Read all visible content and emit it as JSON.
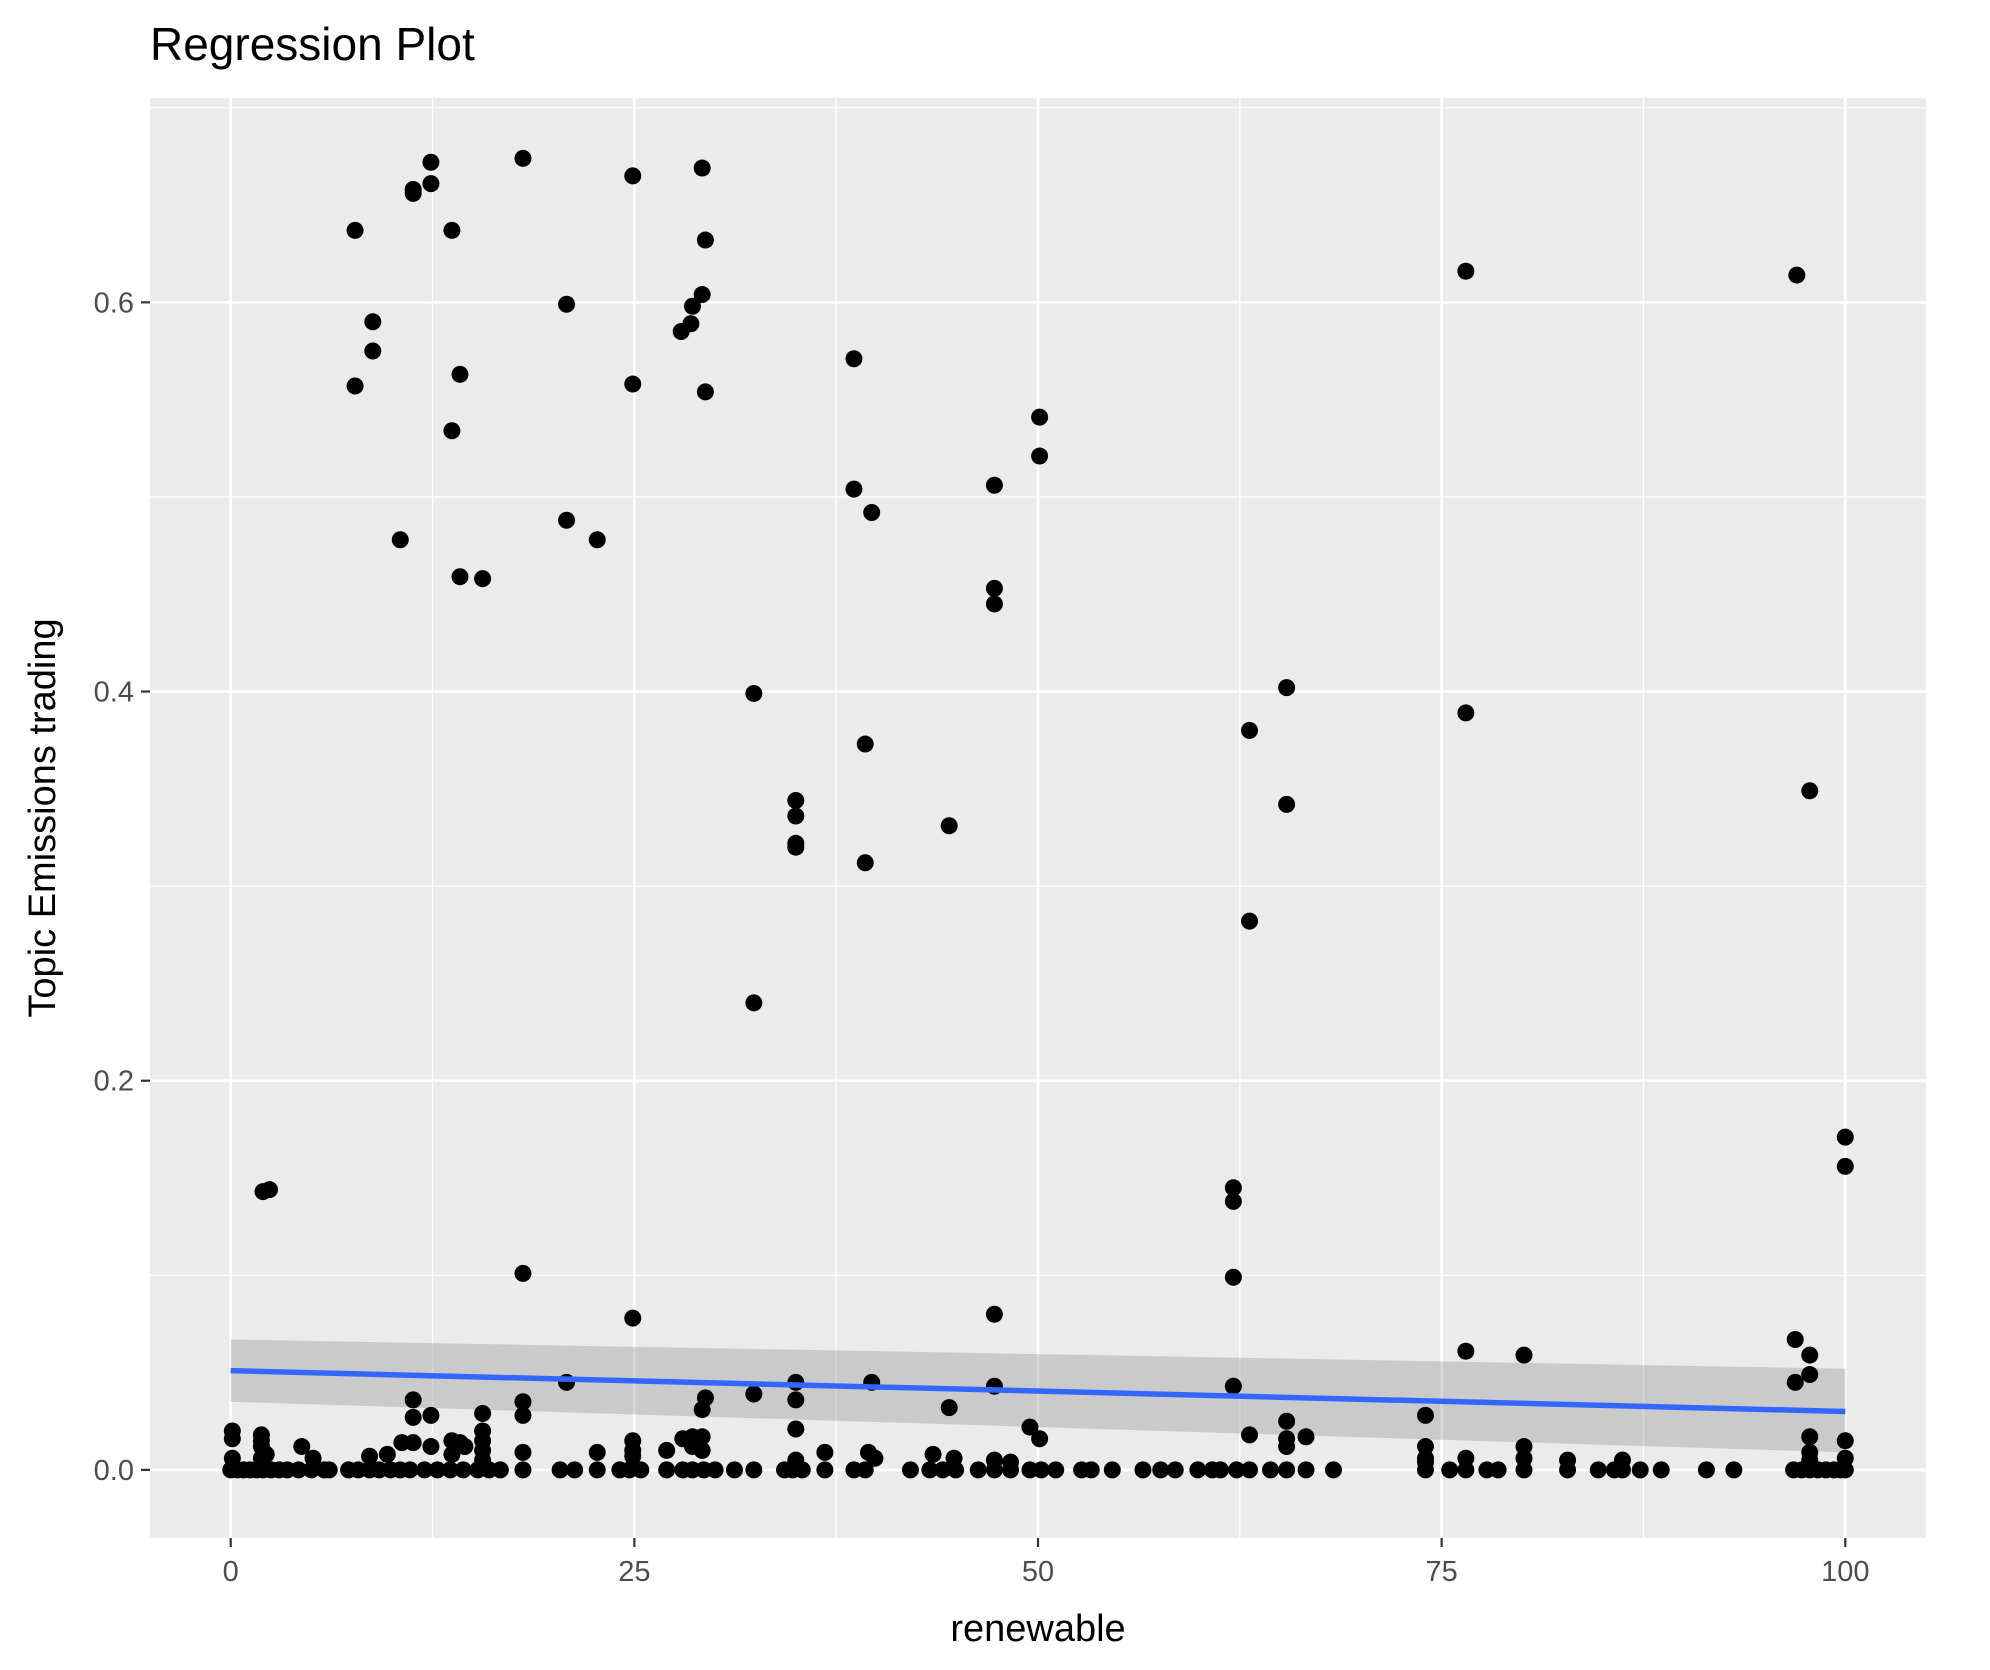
{
  "chart_data": {
    "type": "scatter",
    "title": "Regression Plot",
    "xlabel": "renewable",
    "ylabel": "Topic Emissions trading",
    "xlim": [
      -5,
      105
    ],
    "ylim": [
      -0.035,
      0.705
    ],
    "x_ticks": [
      0,
      25,
      50,
      75,
      100
    ],
    "x_tick_labels": [
      "0",
      "25",
      "50",
      "75",
      "100"
    ],
    "y_ticks": [
      0.0,
      0.2,
      0.4,
      0.6
    ],
    "y_tick_labels": [
      "0.0",
      "0.2",
      "0.4",
      "0.6"
    ],
    "grid": true,
    "legend": "none",
    "colors": {
      "panel": "#EBEBEB",
      "grid": "#FFFFFF",
      "point": "#000000",
      "fit_line": "#3366FF",
      "ribbon": "#999999",
      "tick_text": "#4D4D4D",
      "text": "#000000"
    },
    "fit": {
      "x": [
        0,
        100
      ],
      "y": [
        0.051,
        0.03
      ],
      "band_lower": [
        0.035,
        0.009
      ],
      "band_upper": [
        0.067,
        0.052
      ]
    },
    "points": [
      [
        7.7,
        0.637
      ],
      [
        8.8,
        0.59
      ],
      [
        8.8,
        0.575
      ],
      [
        7.7,
        0.557
      ],
      [
        11.3,
        0.656
      ],
      [
        11.3,
        0.658
      ],
      [
        12.4,
        0.672
      ],
      [
        12.4,
        0.661
      ],
      [
        13.7,
        0.637
      ],
      [
        14.2,
        0.563
      ],
      [
        13.7,
        0.534
      ],
      [
        10.5,
        0.478
      ],
      [
        14.2,
        0.459
      ],
      [
        15.6,
        0.458
      ],
      [
        18.1,
        0.674
      ],
      [
        20.8,
        0.599
      ],
      [
        20.8,
        0.488
      ],
      [
        22.7,
        0.478
      ],
      [
        24.9,
        0.665
      ],
      [
        24.9,
        0.558
      ],
      [
        29.2,
        0.669
      ],
      [
        29.4,
        0.632
      ],
      [
        29.2,
        0.604
      ],
      [
        28.6,
        0.598
      ],
      [
        28.5,
        0.589
      ],
      [
        27.9,
        0.585
      ],
      [
        29.4,
        0.554
      ],
      [
        38.6,
        0.571
      ],
      [
        38.6,
        0.504
      ],
      [
        39.7,
        0.492
      ],
      [
        32.4,
        0.399
      ],
      [
        35.0,
        0.344
      ],
      [
        35.0,
        0.336
      ],
      [
        35.0,
        0.322
      ],
      [
        35.0,
        0.32
      ],
      [
        39.3,
        0.373
      ],
      [
        39.3,
        0.312
      ],
      [
        32.4,
        0.24
      ],
      [
        44.5,
        0.331
      ],
      [
        47.3,
        0.506
      ],
      [
        47.3,
        0.453
      ],
      [
        47.3,
        0.445
      ],
      [
        50.1,
        0.541
      ],
      [
        50.1,
        0.521
      ],
      [
        65.4,
        0.402
      ],
      [
        63.1,
        0.38
      ],
      [
        65.4,
        0.342
      ],
      [
        63.1,
        0.282
      ],
      [
        76.5,
        0.616
      ],
      [
        76.5,
        0.389
      ],
      [
        97.0,
        0.614
      ],
      [
        97.8,
        0.349
      ],
      [
        2.0,
        0.143
      ],
      [
        2.4,
        0.144
      ],
      [
        18.1,
        0.101
      ],
      [
        24.9,
        0.078
      ],
      [
        62.1,
        0.145
      ],
      [
        62.1,
        0.138
      ],
      [
        62.1,
        0.099
      ],
      [
        47.3,
        0.08
      ],
      [
        100,
        0.171
      ],
      [
        100,
        0.156
      ],
      [
        76.5,
        0.061
      ],
      [
        80.1,
        0.059
      ],
      [
        96.9,
        0.067
      ],
      [
        97.8,
        0.059
      ],
      [
        97.8,
        0.049
      ],
      [
        96.9,
        0.045
      ],
      [
        20.8,
        0.045
      ],
      [
        35.0,
        0.045
      ],
      [
        39.7,
        0.045
      ],
      [
        47.3,
        0.043
      ],
      [
        62.1,
        0.043
      ],
      [
        11.3,
        0.036
      ],
      [
        18.1,
        0.035
      ],
      [
        29.4,
        0.037
      ],
      [
        32.4,
        0.039
      ],
      [
        35.0,
        0.036
      ],
      [
        44.5,
        0.032
      ],
      [
        29.2,
        0.031
      ],
      [
        12.4,
        0.028
      ],
      [
        15.6,
        0.029
      ],
      [
        18.1,
        0.028
      ],
      [
        11.3,
        0.027
      ],
      [
        74.0,
        0.028
      ],
      [
        65.4,
        0.025
      ],
      [
        49.5,
        0.022
      ],
      [
        35.0,
        0.021
      ],
      [
        15.6,
        0.02
      ],
      [
        97.8,
        0.017
      ],
      [
        100,
        0.015
      ],
      [
        50.1,
        0.016
      ],
      [
        63.1,
        0.018
      ],
      [
        65.4,
        0.016
      ],
      [
        66.6,
        0.017
      ],
      [
        65.4,
        0.012
      ],
      [
        0.1,
        0.02
      ],
      [
        0.1,
        0.016
      ],
      [
        1.9,
        0.018
      ],
      [
        1.9,
        0.015
      ],
      [
        1.9,
        0.012
      ],
      [
        2.2,
        0.008
      ],
      [
        4.4,
        0.012
      ],
      [
        10.6,
        0.014
      ],
      [
        11.3,
        0.014
      ],
      [
        12.4,
        0.012
      ],
      [
        13.7,
        0.015
      ],
      [
        14.2,
        0.014
      ],
      [
        14.5,
        0.012
      ],
      [
        15.6,
        0.015
      ],
      [
        15.6,
        0.01
      ],
      [
        15.6,
        0.005
      ],
      [
        24.9,
        0.015
      ],
      [
        24.9,
        0.01
      ],
      [
        28.6,
        0.017
      ],
      [
        28.0,
        0.016
      ],
      [
        29.2,
        0.017
      ],
      [
        28.6,
        0.012
      ],
      [
        29.2,
        0.01
      ],
      [
        27.0,
        0.01
      ],
      [
        74.0,
        0.012
      ],
      [
        74.0,
        0.006
      ],
      [
        80.1,
        0.012
      ],
      [
        80.1,
        0.006
      ],
      [
        0.1,
        0.006
      ],
      [
        1.9,
        0.006
      ],
      [
        5.1,
        0.006
      ],
      [
        8.6,
        0.007
      ],
      [
        9.7,
        0.008
      ],
      [
        13.7,
        0.008
      ],
      [
        18.1,
        0.009
      ],
      [
        22.7,
        0.009
      ],
      [
        24.9,
        0.007
      ],
      [
        36.8,
        0.009
      ],
      [
        39.5,
        0.009
      ],
      [
        39.9,
        0.006
      ],
      [
        43.5,
        0.008
      ],
      [
        44.8,
        0.006
      ],
      [
        47.3,
        0.005
      ],
      [
        48.3,
        0.004
      ],
      [
        35.0,
        0.005
      ],
      [
        74.0,
        0.004
      ],
      [
        76.5,
        0.006
      ],
      [
        82.8,
        0.005
      ],
      [
        86.2,
        0.005
      ],
      [
        97.8,
        0.009
      ],
      [
        97.8,
        0.005
      ],
      [
        100,
        0.006
      ],
      [
        0,
        0
      ],
      [
        0.4,
        0
      ],
      [
        0.8,
        0
      ],
      [
        1.2,
        0
      ],
      [
        1.6,
        0
      ],
      [
        2.0,
        0
      ],
      [
        2.5,
        0
      ],
      [
        3.0,
        0
      ],
      [
        3.5,
        0
      ],
      [
        4.2,
        0
      ],
      [
        5.0,
        0
      ],
      [
        5.8,
        0
      ],
      [
        6.1,
        0
      ],
      [
        7.3,
        0
      ],
      [
        7.9,
        0
      ],
      [
        8.6,
        0
      ],
      [
        9.2,
        0
      ],
      [
        9.9,
        0
      ],
      [
        10.5,
        0
      ],
      [
        11.1,
        0
      ],
      [
        12.0,
        0
      ],
      [
        12.8,
        0
      ],
      [
        13.6,
        0
      ],
      [
        14.4,
        0
      ],
      [
        15.3,
        0
      ],
      [
        16.0,
        0
      ],
      [
        16.7,
        0
      ],
      [
        18.1,
        0
      ],
      [
        20.4,
        0
      ],
      [
        21.3,
        0
      ],
      [
        22.7,
        0
      ],
      [
        24.1,
        0
      ],
      [
        24.7,
        0
      ],
      [
        25.4,
        0
      ],
      [
        27.0,
        0
      ],
      [
        28.0,
        0
      ],
      [
        28.6,
        0
      ],
      [
        29.3,
        0
      ],
      [
        30.0,
        0
      ],
      [
        31.2,
        0
      ],
      [
        32.4,
        0
      ],
      [
        34.3,
        0
      ],
      [
        34.8,
        0
      ],
      [
        35.4,
        0
      ],
      [
        36.8,
        0
      ],
      [
        38.6,
        0
      ],
      [
        39.3,
        0
      ],
      [
        42.1,
        0
      ],
      [
        43.3,
        0
      ],
      [
        44.1,
        0
      ],
      [
        44.9,
        0
      ],
      [
        46.3,
        0
      ],
      [
        47.3,
        0
      ],
      [
        48.3,
        0
      ],
      [
        49.5,
        0
      ],
      [
        50.2,
        0
      ],
      [
        51.1,
        0
      ],
      [
        52.7,
        0
      ],
      [
        53.3,
        0
      ],
      [
        54.6,
        0
      ],
      [
        56.5,
        0
      ],
      [
        57.6,
        0
      ],
      [
        58.5,
        0
      ],
      [
        59.9,
        0
      ],
      [
        60.8,
        0
      ],
      [
        61.3,
        0
      ],
      [
        62.3,
        0
      ],
      [
        63.1,
        0
      ],
      [
        64.4,
        0
      ],
      [
        65.4,
        0
      ],
      [
        66.6,
        0
      ],
      [
        68.3,
        0
      ],
      [
        74.0,
        0
      ],
      [
        75.5,
        0
      ],
      [
        76.5,
        0
      ],
      [
        77.8,
        0
      ],
      [
        78.5,
        0
      ],
      [
        80.1,
        0
      ],
      [
        82.8,
        0
      ],
      [
        84.7,
        0
      ],
      [
        85.7,
        0
      ],
      [
        86.2,
        0
      ],
      [
        87.3,
        0
      ],
      [
        88.6,
        0
      ],
      [
        91.4,
        0
      ],
      [
        93.1,
        0
      ],
      [
        96.8,
        0
      ],
      [
        97.3,
        0
      ],
      [
        97.8,
        0
      ],
      [
        98.3,
        0
      ],
      [
        98.8,
        0
      ],
      [
        99.3,
        0
      ],
      [
        99.7,
        0
      ],
      [
        100,
        0
      ]
    ]
  }
}
